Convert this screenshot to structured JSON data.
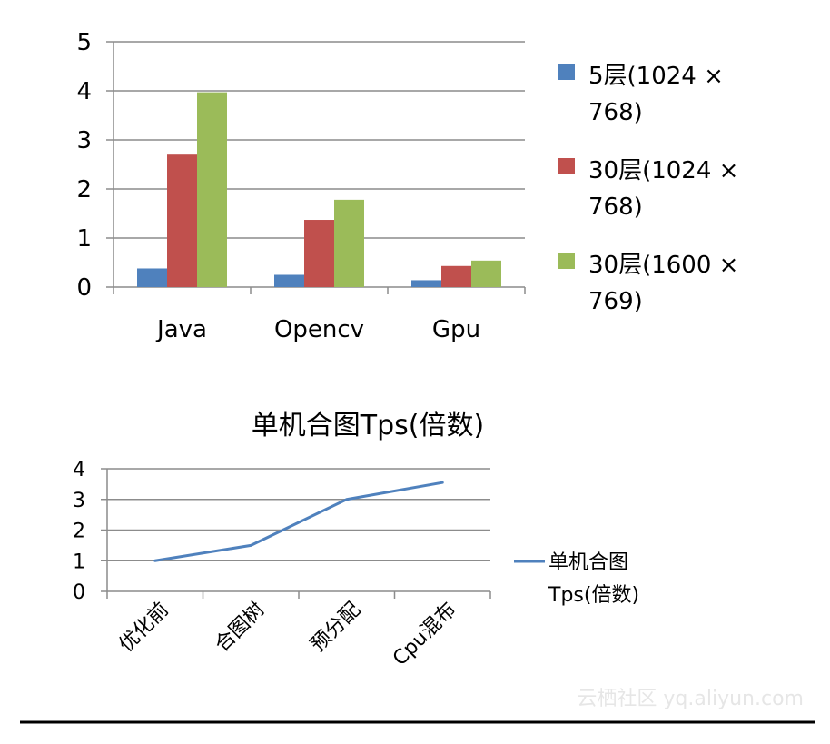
{
  "chart_data": [
    {
      "type": "bar",
      "title": "",
      "categories": [
        "Java",
        "Opencv",
        "Gpu"
      ],
      "ylim": [
        0,
        5
      ],
      "yticks": [
        "0",
        "1",
        "2",
        "3",
        "4",
        "5"
      ],
      "grid": true,
      "legend_position": "right",
      "series": [
        {
          "name": "5层(1024 × 768)",
          "legend_lines": [
            "5层(1024 ×",
            "768)"
          ],
          "color": "#4f81bd",
          "values": [
            0.38,
            0.25,
            0.14
          ]
        },
        {
          "name": "30层(1024 × 768)",
          "legend_lines": [
            "30层(1024 ×",
            "768)"
          ],
          "color": "#c0504d",
          "values": [
            2.7,
            1.37,
            0.43
          ]
        },
        {
          "name": "30层(1600 × 769)",
          "legend_lines": [
            "30层(1600 ×",
            "769)"
          ],
          "color": "#9bbb59",
          "values": [
            3.97,
            1.78,
            0.54
          ]
        }
      ]
    },
    {
      "type": "line",
      "title": "单机合图Tps(倍数)",
      "categories": [
        "优化前",
        "合图树",
        "预分配",
        "Cpu混布"
      ],
      "ylim": [
        0,
        4
      ],
      "yticks": [
        "0",
        "1",
        "2",
        "3",
        "4"
      ],
      "grid": true,
      "legend_position": "right",
      "series": [
        {
          "name": "单机合图Tps(倍数)",
          "legend_lines": [
            "单机合图",
            "Tps(倍数)"
          ],
          "color": "#4f81bd",
          "values": [
            1.0,
            1.5,
            3.0,
            3.55
          ]
        }
      ]
    }
  ],
  "watermark": "云栖社区 yq.aliyun.com"
}
